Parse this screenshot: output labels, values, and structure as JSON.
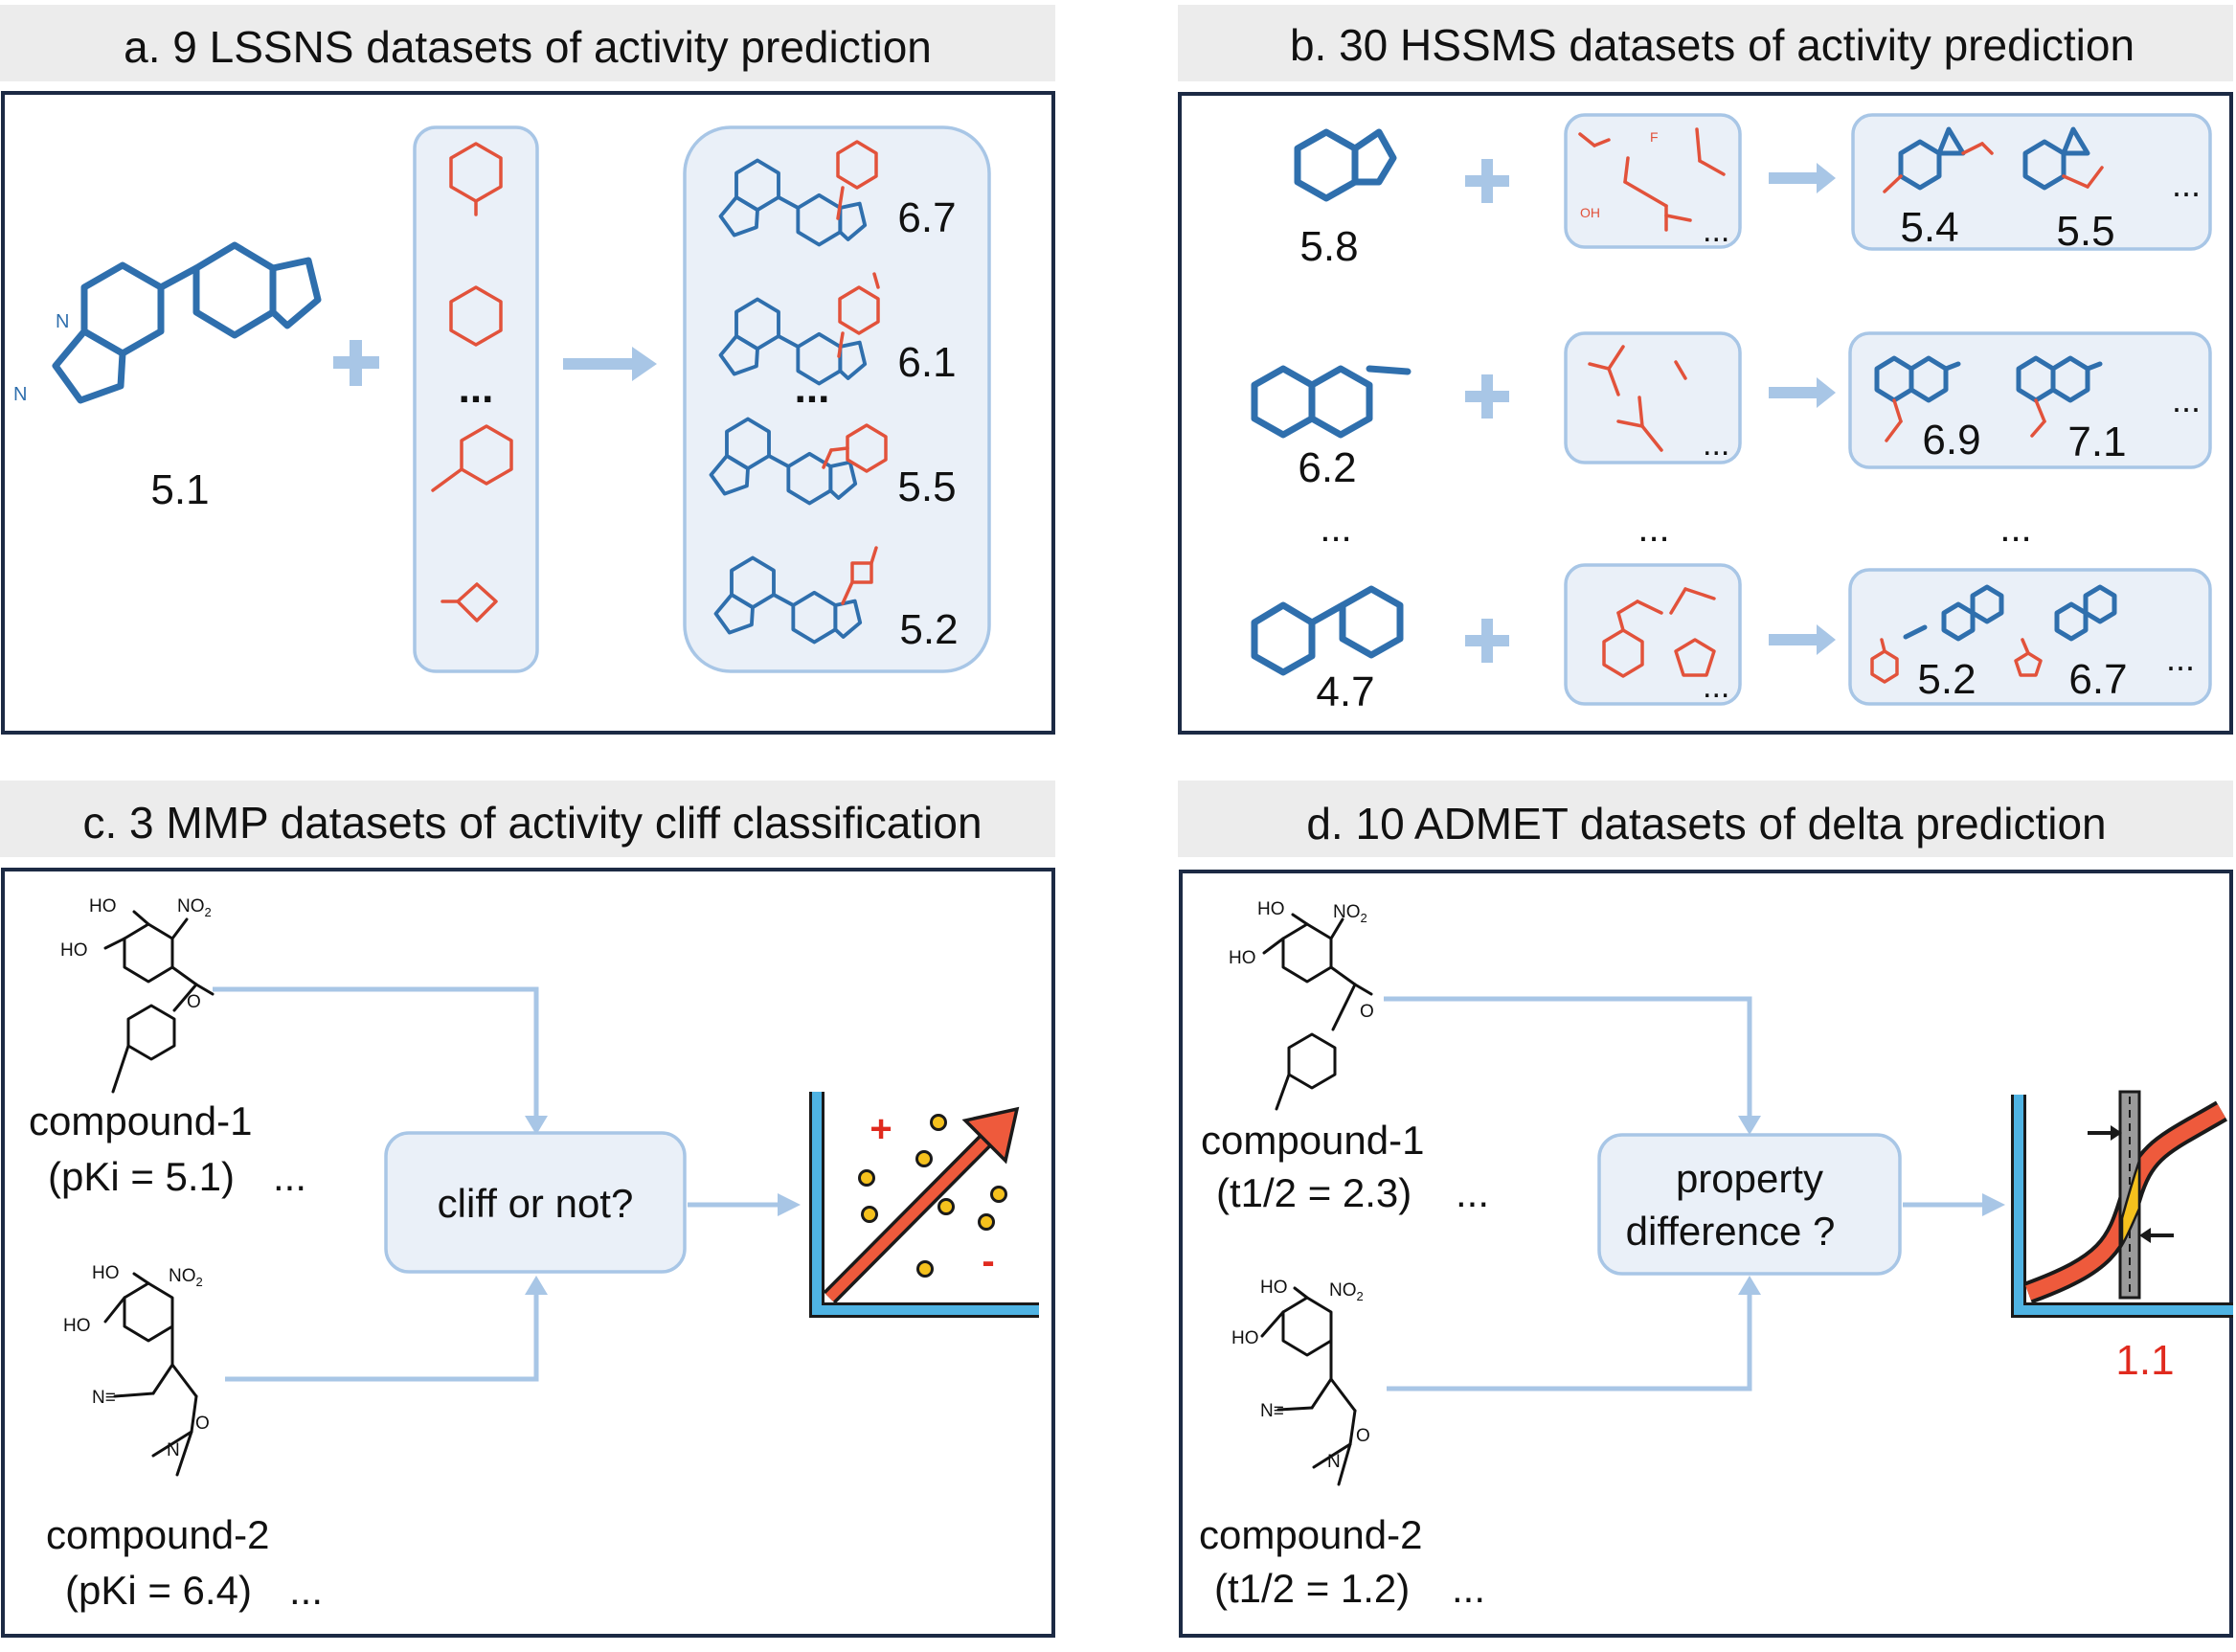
{
  "panels": {
    "a": {
      "title": "a. 9 LSSNS datasets of activity prediction",
      "core_value": "5.1",
      "ellipsis": "...",
      "product_values": [
        "6.7",
        "6.1",
        "5.5",
        "5.2"
      ]
    },
    "b": {
      "title": "b. 30 HSSMS datasets of activity prediction",
      "rows": [
        {
          "core_value": "5.8",
          "product_values": [
            "5.4",
            "5.5"
          ]
        },
        {
          "core_value": "6.2",
          "product_values": [
            "6.9",
            "7.1"
          ]
        },
        {
          "core_value": "4.7",
          "product_values": [
            "5.2",
            "6.7"
          ]
        }
      ],
      "ellipsis": "...",
      "fragment_atoms": {
        "f1": "F",
        "f2": "OH"
      }
    },
    "c": {
      "title": "c. 3 MMP datasets of activity cliff classification",
      "compound1_label": "compound-1",
      "compound1_value": "(pKi = 5.1)",
      "compound2_label": "compound-2",
      "compound2_value": "(pKi = 6.4)",
      "ellipsis": "...",
      "decision_box": "cliff or not?",
      "plus_sign": "+",
      "minus_sign": "-"
    },
    "d": {
      "title": "d. 10 ADMET datasets of delta prediction",
      "compound1_label": "compound-1",
      "compound1_value": "(t1/2 = 2.3)",
      "compound2_label": "compound-2",
      "compound2_value": "(t1/2 = 1.2)",
      "ellipsis": "...",
      "decision_line1": "property",
      "decision_line2": "difference ?",
      "delta_value": "1.1"
    },
    "atoms": {
      "ho": "HO",
      "no2": "NO",
      "no2_sub": "2",
      "o": "O",
      "n": "N",
      "nc": "N≡"
    }
  },
  "colors": {
    "core_blue": "#2f6fad",
    "fragment_red": "#e2523b",
    "accent_light_blue": "#a8c6e6",
    "box_fill": "#eaf0f8",
    "frame_navy": "#1c2a44",
    "delta_red": "#e02a1e"
  }
}
